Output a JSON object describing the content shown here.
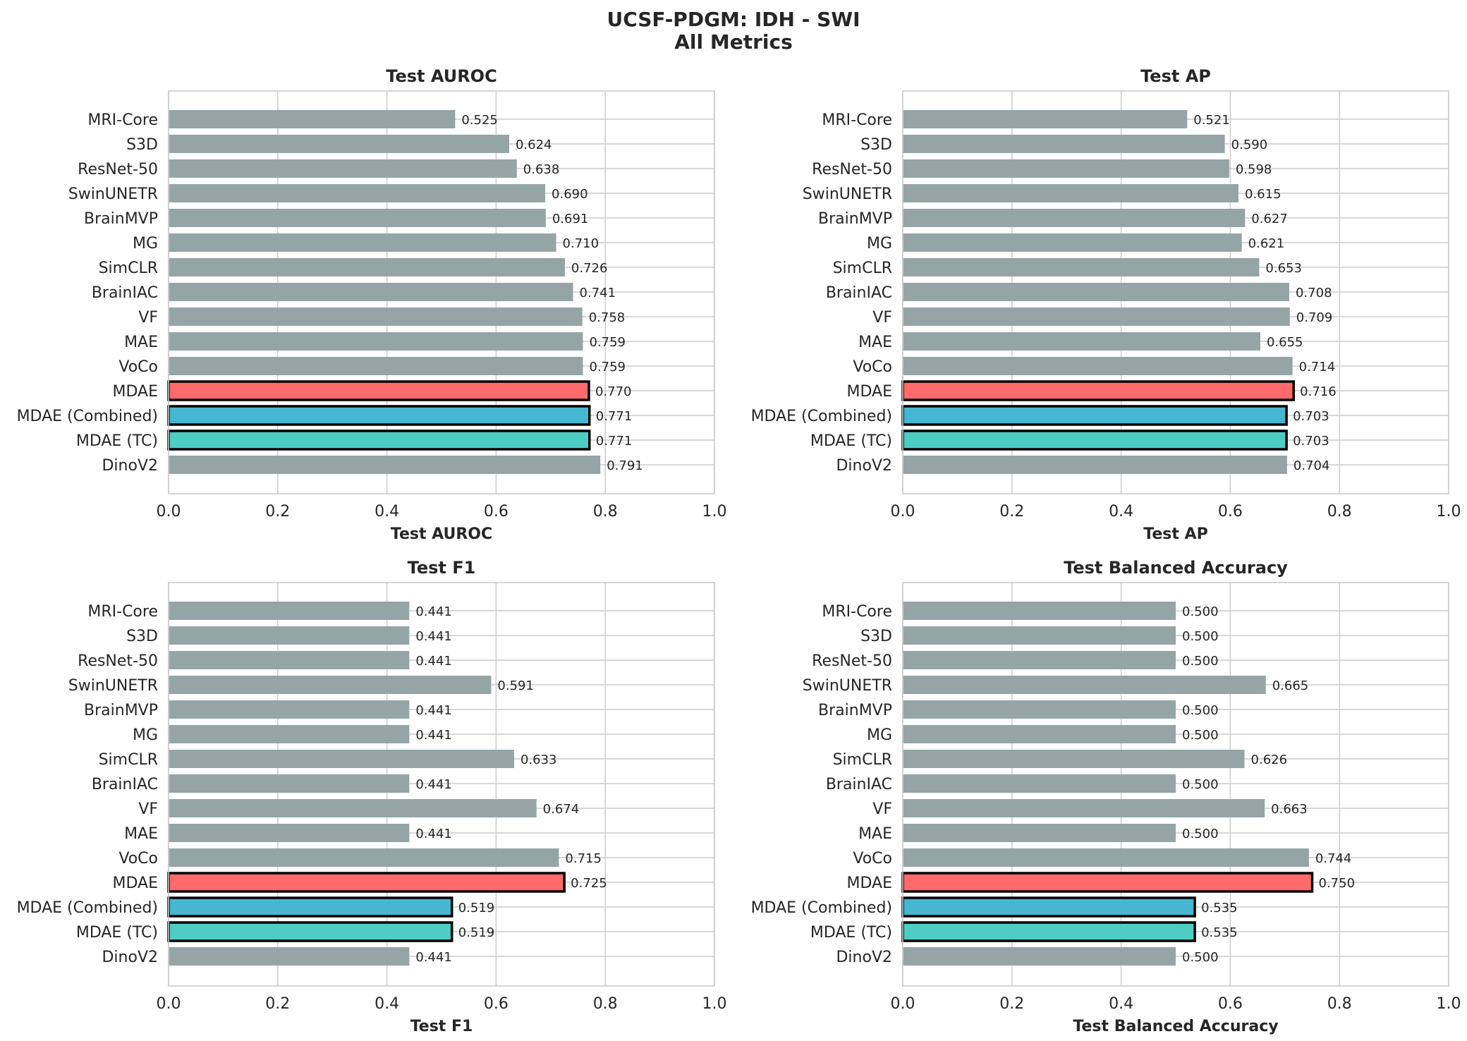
{
  "figure": {
    "title_line1": "UCSF-PDGM: IDH - SWI",
    "title_line2": "All Metrics"
  },
  "colors": {
    "default_bar": "#95a5a6",
    "MDAE": "#ff6b6b",
    "MDAE (Combined)": "#45b7d1",
    "MDAE (TC)": "#4ecdc4",
    "highlight_edge": "#000000",
    "grid": "#cccccc",
    "text": "#262626"
  },
  "highlighted": [
    "MDAE",
    "MDAE (Combined)",
    "MDAE (TC)"
  ],
  "chart_data": [
    {
      "type": "bar",
      "orientation": "horizontal",
      "title": "Test AUROC",
      "xlabel": "Test AUROC",
      "xlim": [
        0.0,
        1.0
      ],
      "xticks": [
        "0.0",
        "0.2",
        "0.4",
        "0.6",
        "0.8",
        "1.0"
      ],
      "grid": true,
      "categories": [
        "MRI-Core",
        "S3D",
        "ResNet-50",
        "SwinUNETR",
        "BrainMVP",
        "MG",
        "SimCLR",
        "BrainIAC",
        "VF",
        "MAE",
        "VoCo",
        "MDAE",
        "MDAE (Combined)",
        "MDAE (TC)",
        "DinoV2"
      ],
      "values": [
        0.525,
        0.624,
        0.638,
        0.69,
        0.691,
        0.71,
        0.726,
        0.741,
        0.758,
        0.759,
        0.759,
        0.77,
        0.771,
        0.771,
        0.791
      ],
      "labels": [
        "0.525",
        "0.624",
        "0.638",
        "0.690",
        "0.691",
        "0.710",
        "0.726",
        "0.741",
        "0.758",
        "0.759",
        "0.759",
        "0.770",
        "0.771",
        "0.771",
        "0.791"
      ]
    },
    {
      "type": "bar",
      "orientation": "horizontal",
      "title": "Test AP",
      "xlabel": "Test AP",
      "xlim": [
        0.0,
        1.0
      ],
      "xticks": [
        "0.0",
        "0.2",
        "0.4",
        "0.6",
        "0.8",
        "1.0"
      ],
      "grid": true,
      "categories": [
        "MRI-Core",
        "S3D",
        "ResNet-50",
        "SwinUNETR",
        "BrainMVP",
        "MG",
        "SimCLR",
        "BrainIAC",
        "VF",
        "MAE",
        "VoCo",
        "MDAE",
        "MDAE (Combined)",
        "MDAE (TC)",
        "DinoV2"
      ],
      "values": [
        0.521,
        0.59,
        0.598,
        0.615,
        0.627,
        0.621,
        0.653,
        0.708,
        0.709,
        0.655,
        0.714,
        0.716,
        0.703,
        0.703,
        0.704
      ],
      "labels": [
        "0.521",
        "0.590",
        "0.598",
        "0.615",
        "0.627",
        "0.621",
        "0.653",
        "0.708",
        "0.709",
        "0.655",
        "0.714",
        "0.716",
        "0.703",
        "0.703",
        "0.704"
      ]
    },
    {
      "type": "bar",
      "orientation": "horizontal",
      "title": "Test F1",
      "xlabel": "Test F1",
      "xlim": [
        0.0,
        1.0
      ],
      "xticks": [
        "0.0",
        "0.2",
        "0.4",
        "0.6",
        "0.8",
        "1.0"
      ],
      "grid": true,
      "categories": [
        "MRI-Core",
        "S3D",
        "ResNet-50",
        "SwinUNETR",
        "BrainMVP",
        "MG",
        "SimCLR",
        "BrainIAC",
        "VF",
        "MAE",
        "VoCo",
        "MDAE",
        "MDAE (Combined)",
        "MDAE (TC)",
        "DinoV2"
      ],
      "values": [
        0.441,
        0.441,
        0.441,
        0.591,
        0.441,
        0.441,
        0.633,
        0.441,
        0.674,
        0.441,
        0.715,
        0.725,
        0.519,
        0.519,
        0.441
      ],
      "labels": [
        "0.441",
        "0.441",
        "0.441",
        "0.591",
        "0.441",
        "0.441",
        "0.633",
        "0.441",
        "0.674",
        "0.441",
        "0.715",
        "0.725",
        "0.519",
        "0.519",
        "0.441"
      ]
    },
    {
      "type": "bar",
      "orientation": "horizontal",
      "title": "Test Balanced Accuracy",
      "xlabel": "Test Balanced Accuracy",
      "xlim": [
        0.0,
        1.0
      ],
      "xticks": [
        "0.0",
        "0.2",
        "0.4",
        "0.6",
        "0.8",
        "1.0"
      ],
      "grid": true,
      "categories": [
        "MRI-Core",
        "S3D",
        "ResNet-50",
        "SwinUNETR",
        "BrainMVP",
        "MG",
        "SimCLR",
        "BrainIAC",
        "VF",
        "MAE",
        "VoCo",
        "MDAE",
        "MDAE (Combined)",
        "MDAE (TC)",
        "DinoV2"
      ],
      "values": [
        0.5,
        0.5,
        0.5,
        0.665,
        0.5,
        0.5,
        0.626,
        0.5,
        0.663,
        0.5,
        0.744,
        0.75,
        0.535,
        0.535,
        0.5
      ],
      "labels": [
        "0.500",
        "0.500",
        "0.500",
        "0.665",
        "0.500",
        "0.500",
        "0.626",
        "0.500",
        "0.663",
        "0.500",
        "0.744",
        "0.750",
        "0.535",
        "0.535",
        "0.500"
      ]
    }
  ]
}
